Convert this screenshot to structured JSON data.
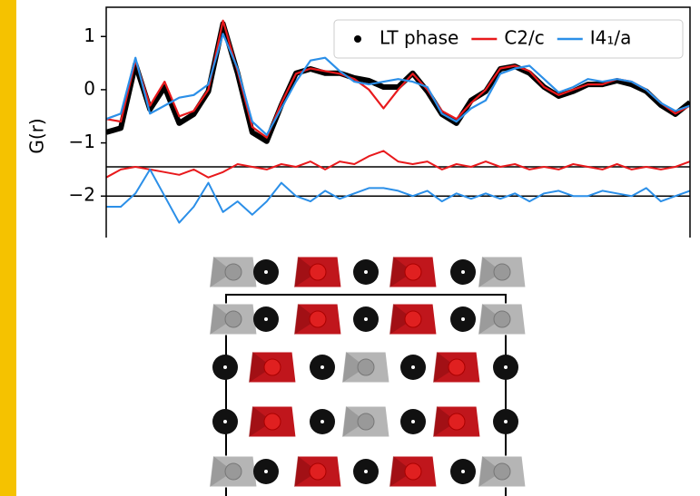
{
  "chart_data": {
    "type": "line",
    "ylabel": "G(r)",
    "xlim": [
      0,
      100
    ],
    "ylim": [
      -2.78,
      1.55
    ],
    "yticks": [
      1,
      0,
      {
        "value": -1,
        "label": "−1"
      },
      {
        "value": -2,
        "label": "−2"
      }
    ],
    "legend": "upper right",
    "x": [
      0,
      2.5,
      5,
      7.5,
      10,
      12.5,
      15,
      17.5,
      20,
      22.5,
      25,
      27.5,
      30,
      32.5,
      35,
      37.5,
      40,
      42.5,
      45,
      47.5,
      50,
      52.5,
      55,
      57.5,
      60,
      62.5,
      65,
      67.5,
      70,
      72.5,
      75,
      77.5,
      80,
      82.5,
      85,
      87.5,
      90,
      92.5,
      95,
      97.5,
      100
    ],
    "series": [
      {
        "name": "LT phase",
        "color": "#000000",
        "values": [
          -0.8,
          -0.72,
          0.48,
          -0.37,
          0.05,
          -0.63,
          -0.46,
          -0.03,
          1.24,
          0.31,
          -0.8,
          -0.97,
          -0.29,
          0.31,
          0.39,
          0.31,
          0.31,
          0.22,
          0.17,
          0.05,
          0.05,
          0.31,
          -0.03,
          -0.46,
          -0.63,
          -0.2,
          -0.03,
          0.39,
          0.44,
          0.31,
          0.05,
          -0.12,
          -0.03,
          0.1,
          0.1,
          0.17,
          0.1,
          -0.03,
          -0.29,
          -0.46,
          -0.24
        ]
      },
      {
        "name": "C2/c",
        "color": "#e8191c",
        "values": [
          -0.55,
          -0.6,
          0.55,
          -0.3,
          0.15,
          -0.5,
          -0.4,
          0.0,
          1.3,
          0.35,
          -0.7,
          -0.9,
          -0.25,
          0.3,
          0.4,
          0.35,
          0.3,
          0.2,
          0.0,
          -0.35,
          0.0,
          0.3,
          0.0,
          -0.4,
          -0.55,
          -0.25,
          0.0,
          0.4,
          0.45,
          0.35,
          0.05,
          -0.1,
          0.0,
          0.1,
          0.1,
          0.2,
          0.15,
          0.0,
          -0.25,
          -0.45,
          -0.3
        ]
      },
      {
        "name": "I4₁/a",
        "color": "#2b8fe8",
        "values": [
          -0.55,
          -0.45,
          0.6,
          -0.45,
          -0.3,
          -0.15,
          -0.1,
          0.1,
          1.05,
          0.4,
          -0.6,
          -0.85,
          -0.35,
          0.15,
          0.55,
          0.6,
          0.35,
          0.15,
          0.1,
          0.15,
          0.2,
          0.15,
          0.05,
          -0.45,
          -0.6,
          -0.35,
          -0.2,
          0.3,
          0.4,
          0.45,
          0.2,
          -0.05,
          0.05,
          0.2,
          0.15,
          0.2,
          0.15,
          0.0,
          -0.25,
          -0.4,
          -0.3
        ]
      }
    ],
    "difference_series": [
      {
        "color": "#e8191c",
        "values": [
          -1.65,
          -1.5,
          -1.45,
          -1.5,
          -1.55,
          -1.6,
          -1.5,
          -1.65,
          -1.55,
          -1.4,
          -1.45,
          -1.5,
          -1.4,
          -1.45,
          -1.35,
          -1.5,
          -1.35,
          -1.4,
          -1.25,
          -1.15,
          -1.35,
          -1.4,
          -1.35,
          -1.5,
          -1.4,
          -1.45,
          -1.35,
          -1.45,
          -1.4,
          -1.5,
          -1.45,
          -1.5,
          -1.4,
          -1.45,
          -1.5,
          -1.4,
          -1.5,
          -1.45,
          -1.5,
          -1.45,
          -1.35
        ]
      },
      {
        "color": "#2b8fe8",
        "values": [
          -2.2,
          -2.2,
          -1.95,
          -1.5,
          -2.0,
          -2.5,
          -2.2,
          -1.75,
          -2.3,
          -2.1,
          -2.35,
          -2.1,
          -1.75,
          -2.0,
          -2.1,
          -1.9,
          -2.05,
          -1.95,
          -1.85,
          -1.85,
          -1.9,
          -2.0,
          -1.9,
          -2.1,
          -1.95,
          -2.05,
          -1.95,
          -2.05,
          -1.95,
          -2.1,
          -1.95,
          -1.9,
          -2.0,
          -2.0,
          -1.9,
          -1.95,
          -2.0,
          -1.85,
          -2.1,
          -2.0,
          -1.9
        ]
      }
    ],
    "hlines": [
      -1.45,
      -2.0
    ]
  }
}
